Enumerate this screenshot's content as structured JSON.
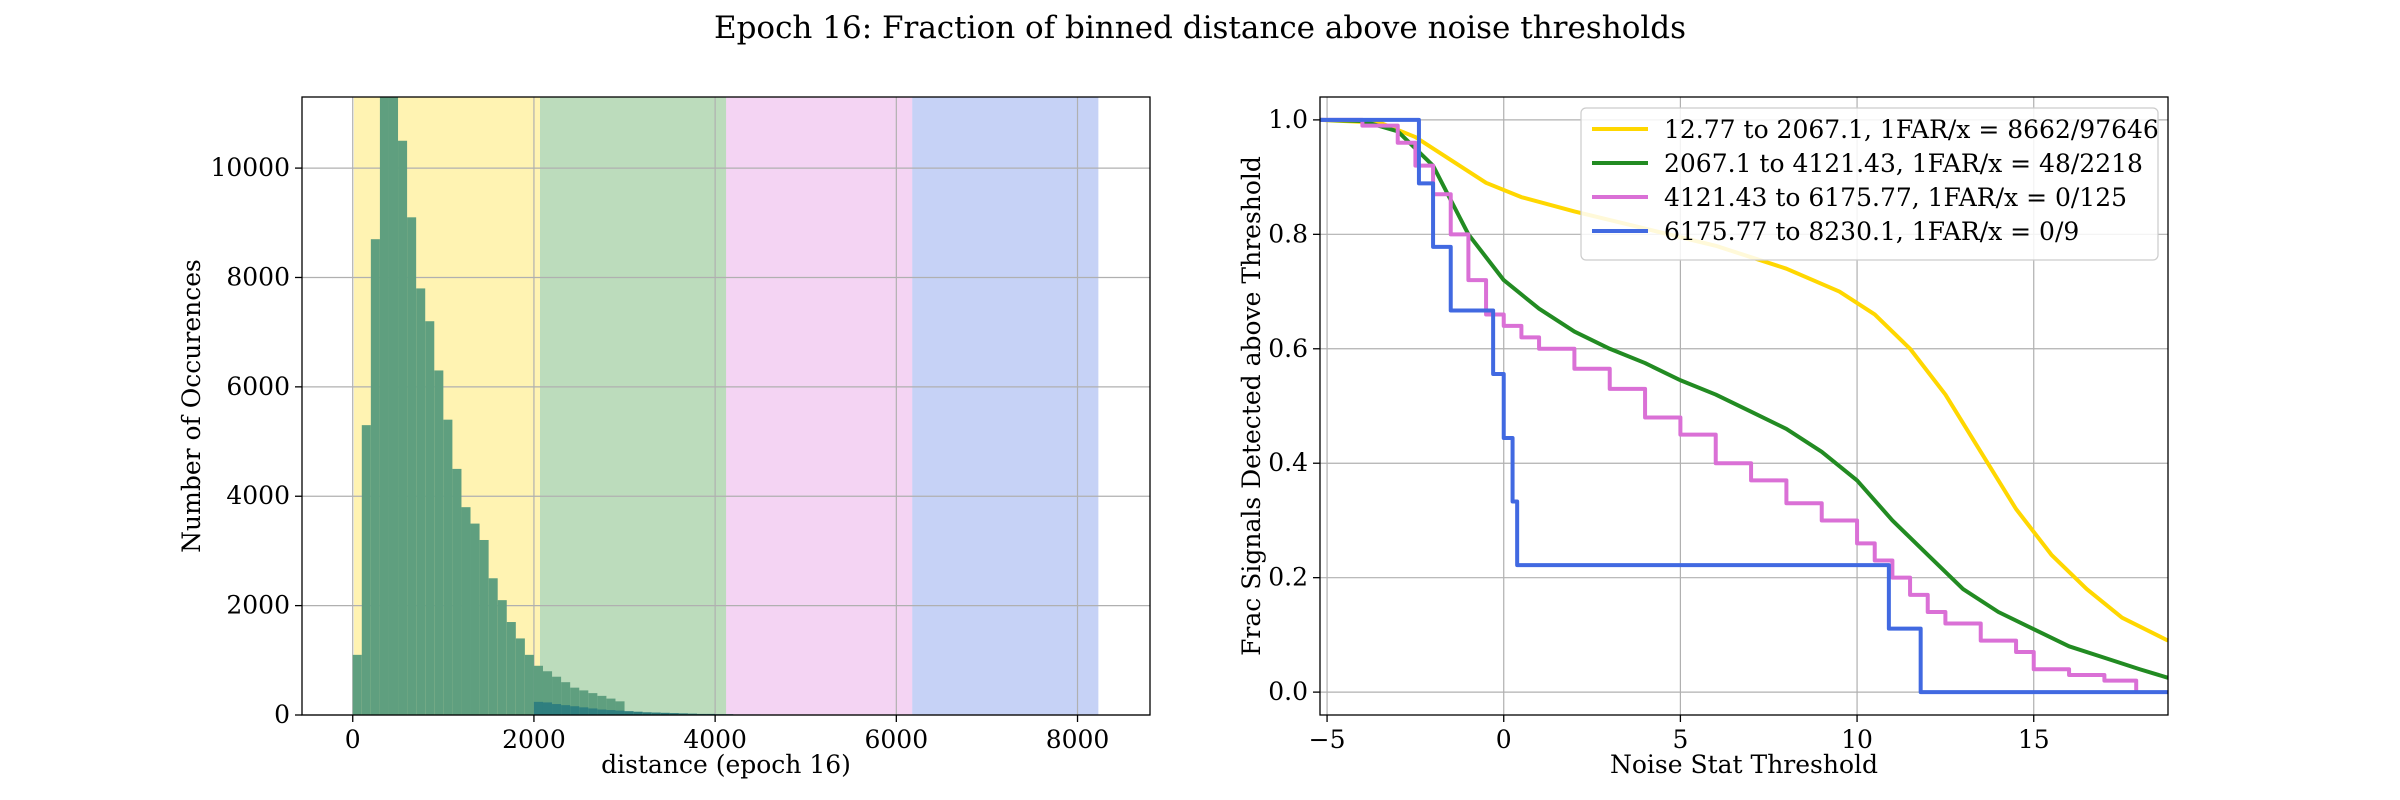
{
  "chart_data": [
    {
      "type": "bar",
      "title": "Epoch 16: Fraction of binned distance above noise thresholds",
      "xlabel": "distance (epoch 16)",
      "ylabel": "Number of Occurences",
      "xlim": [
        -560,
        8800
      ],
      "ylim": [
        0,
        11300
      ],
      "xticks": [
        0,
        2000,
        4000,
        6000,
        8000
      ],
      "yticks": [
        0,
        2000,
        4000,
        6000,
        8000,
        10000
      ],
      "grid": true,
      "bin_width": 100,
      "bands": [
        {
          "from": 12.77,
          "to": 2067.1,
          "color": "#FFD700"
        },
        {
          "from": 2067.1,
          "to": 4121.43,
          "color": "#228B22"
        },
        {
          "from": 4121.43,
          "to": 6175.77,
          "color": "#DA70D6"
        },
        {
          "from": 6175.77,
          "to": 8230.1,
          "color": "#4169E1"
        }
      ],
      "histograms": [
        {
          "color": "#5F9F7F",
          "start": 0,
          "values": [
            1100,
            5300,
            8700,
            11300,
            11300,
            10500,
            9100,
            7800,
            7200,
            6300,
            5400,
            4500,
            3800,
            3500,
            3200,
            2500,
            2100,
            1700,
            1400,
            1100,
            900,
            800,
            700,
            600,
            500,
            450,
            400,
            350,
            300,
            250
          ]
        },
        {
          "color": "#2F7F7F",
          "start": 2000,
          "values": [
            240,
            230,
            200,
            180,
            160,
            140,
            120,
            100,
            90,
            80,
            70,
            60,
            50,
            45,
            40,
            35,
            30,
            25,
            20,
            20,
            15,
            15,
            10,
            10,
            10
          ]
        }
      ]
    },
    {
      "type": "line",
      "xlabel": "Noise Stat Threshold",
      "ylabel": "Frac Signals Detected above Threshold",
      "xlim": [
        -5.2,
        18.8
      ],
      "ylim": [
        -0.04,
        1.04
      ],
      "xticks": [
        -5,
        0,
        5,
        10,
        15
      ],
      "yticks": [
        0.0,
        0.2,
        0.4,
        0.6,
        0.8,
        1.0
      ],
      "ytick_labels": [
        "0.0",
        "0.2",
        "0.4",
        "0.6",
        "0.8",
        "1.0"
      ],
      "grid": true,
      "legend_position": "top-right",
      "series": [
        {
          "name": "12.77 to 2067.1, 1FAR/x = 8662/97646",
          "color": "#FFD700",
          "step": false,
          "points": [
            [
              -5.2,
              1.0
            ],
            [
              -3.5,
              0.995
            ],
            [
              -2.5,
              0.97
            ],
            [
              -1.5,
              0.93
            ],
            [
              -0.5,
              0.89
            ],
            [
              0.5,
              0.865
            ],
            [
              2,
              0.84
            ],
            [
              4,
              0.81
            ],
            [
              6,
              0.78
            ],
            [
              8,
              0.74
            ],
            [
              9.5,
              0.7
            ],
            [
              10.5,
              0.66
            ],
            [
              11.5,
              0.6
            ],
            [
              12.5,
              0.52
            ],
            [
              13.5,
              0.42
            ],
            [
              14.5,
              0.32
            ],
            [
              15.5,
              0.24
            ],
            [
              16.5,
              0.18
            ],
            [
              17.5,
              0.13
            ],
            [
              18.8,
              0.09
            ]
          ]
        },
        {
          "name": "2067.1 to 4121.43, 1FAR/x = 48/2218",
          "color": "#228B22",
          "step": false,
          "points": [
            [
              -5.2,
              1.0
            ],
            [
              -4,
              0.998
            ],
            [
              -3,
              0.98
            ],
            [
              -2,
              0.92
            ],
            [
              -1.5,
              0.86
            ],
            [
              -1,
              0.8
            ],
            [
              -0.5,
              0.76
            ],
            [
              0,
              0.72
            ],
            [
              1,
              0.67
            ],
            [
              2,
              0.63
            ],
            [
              3,
              0.6
            ],
            [
              4,
              0.575
            ],
            [
              5,
              0.545
            ],
            [
              6,
              0.52
            ],
            [
              7,
              0.49
            ],
            [
              8,
              0.46
            ],
            [
              9,
              0.42
            ],
            [
              10,
              0.37
            ],
            [
              11,
              0.3
            ],
            [
              12,
              0.24
            ],
            [
              13,
              0.18
            ],
            [
              14,
              0.14
            ],
            [
              15,
              0.11
            ],
            [
              16,
              0.08
            ],
            [
              17,
              0.06
            ],
            [
              18,
              0.04
            ],
            [
              18.8,
              0.025
            ]
          ]
        },
        {
          "name": "4121.43 to 6175.77, 1FAR/x = 0/125",
          "color": "#DA70D6",
          "step": true,
          "points": [
            [
              -5.2,
              1.0
            ],
            [
              -4,
              0.99
            ],
            [
              -3,
              0.96
            ],
            [
              -2.5,
              0.92
            ],
            [
              -2,
              0.87
            ],
            [
              -1.5,
              0.8
            ],
            [
              -1,
              0.72
            ],
            [
              -0.5,
              0.66
            ],
            [
              0,
              0.64
            ],
            [
              0.5,
              0.62
            ],
            [
              1,
              0.6
            ],
            [
              2,
              0.565
            ],
            [
              3,
              0.53
            ],
            [
              4,
              0.48
            ],
            [
              5,
              0.45
            ],
            [
              6,
              0.4
            ],
            [
              7,
              0.37
            ],
            [
              8,
              0.33
            ],
            [
              9,
              0.3
            ],
            [
              10,
              0.26
            ],
            [
              10.5,
              0.23
            ],
            [
              11,
              0.2
            ],
            [
              11.5,
              0.17
            ],
            [
              12,
              0.14
            ],
            [
              12.5,
              0.12
            ],
            [
              13.5,
              0.09
            ],
            [
              14.5,
              0.07
            ],
            [
              15,
              0.04
            ],
            [
              16,
              0.03
            ],
            [
              17,
              0.02
            ],
            [
              17.9,
              0.0
            ]
          ]
        },
        {
          "name": "6175.77 to 8230.1, 1FAR/x = 0/9",
          "color": "#4169E1",
          "step": true,
          "points": [
            [
              -5.2,
              1.0
            ],
            [
              -2.4,
              1.0
            ],
            [
              -2.4,
              0.889
            ],
            [
              -2.0,
              0.889
            ],
            [
              -2.0,
              0.778
            ],
            [
              -1.5,
              0.778
            ],
            [
              -1.5,
              0.667
            ],
            [
              -0.3,
              0.667
            ],
            [
              -0.3,
              0.556
            ],
            [
              0.0,
              0.556
            ],
            [
              0.0,
              0.444
            ],
            [
              0.25,
              0.444
            ],
            [
              0.25,
              0.333
            ],
            [
              0.38,
              0.333
            ],
            [
              0.38,
              0.222
            ],
            [
              10.9,
              0.222
            ],
            [
              10.9,
              0.111
            ],
            [
              11.8,
              0.111
            ],
            [
              11.8,
              0.0
            ],
            [
              18.8,
              0.0
            ]
          ]
        }
      ]
    }
  ]
}
